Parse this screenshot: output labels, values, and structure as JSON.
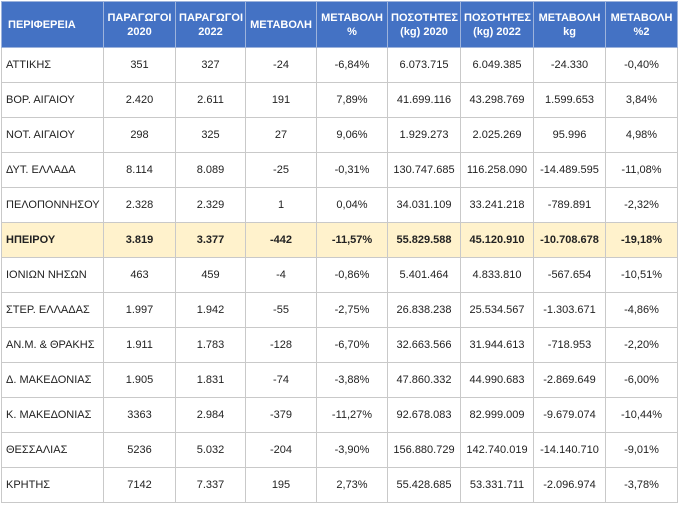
{
  "table": {
    "header": [
      "ΠΕΡΙΦΕΡΕΙΑ",
      "ΠΑΡΑΓΩΓΟΙ 2020",
      "ΠΑΡΑΓΩΓΟΙ 2022",
      "ΜΕΤΑΒΟΛΗ",
      "ΜΕΤΑΒΟΛΗ %",
      "ΠΟΣΟΤΗΤΕΣ (kg) 2020",
      "ΠΟΣΟΤΗΤΕΣ (kg) 2022",
      "ΜΕΤΑΒΟΛΗ kg",
      "ΜΕΤΑΒΟΛΗ %2"
    ],
    "rows": [
      [
        "ΑΤΤΙΚΗΣ",
        "351",
        "327",
        "-24",
        "-6,84%",
        "6.073.715",
        "6.049.385",
        "-24.330",
        "-0,40%"
      ],
      [
        "ΒΟΡ. ΑΙΓΑΙΟΥ",
        "2.420",
        "2.611",
        "191",
        "7,89%",
        "41.699.116",
        "43.298.769",
        "1.599.653",
        "3,84%"
      ],
      [
        "ΝΟΤ. ΑΙΓΑΙΟΥ",
        "298",
        "325",
        "27",
        "9,06%",
        "1.929.273",
        "2.025.269",
        "95.996",
        "4,98%"
      ],
      [
        "ΔΥΤ. ΕΛΛΑΔΑ",
        "8.114",
        "8.089",
        "-25",
        "-0,31%",
        "130.747.685",
        "116.258.090",
        "-14.489.595",
        "-11,08%"
      ],
      [
        "ΠΕΛΟΠΟΝΝΗΣΟΥ",
        "2.328",
        "2.329",
        "1",
        "0,04%",
        "34.031.109",
        "33.241.218",
        "-789.891",
        "-2,32%"
      ],
      [
        "ΗΠΕΙΡΟΥ",
        "3.819",
        "3.377",
        "-442",
        "-11,57%",
        "55.829.588",
        "45.120.910",
        "-10.708.678",
        "-19,18%"
      ],
      [
        "ΙΟΝΙΩΝ ΝΗΣΩΝ",
        "463",
        "459",
        "-4",
        "-0,86%",
        "5.401.464",
        "4.833.810",
        "-567.654",
        "-10,51%"
      ],
      [
        "ΣΤΕΡ. ΕΛΛΑΔΑΣ",
        "1.997",
        "1.942",
        "-55",
        "-2,75%",
        "26.838.238",
        "25.534.567",
        "-1.303.671",
        "-4,86%"
      ],
      [
        "ΑΝ.Μ. & ΘΡΑΚΗΣ",
        "1.911",
        "1.783",
        "-128",
        "-6,70%",
        "32.663.566",
        "31.944.613",
        "-718.953",
        "-2,20%"
      ],
      [
        "Δ. ΜΑΚΕΔΟΝΙΑΣ",
        "1.905",
        "1.831",
        "-74",
        "-3,88%",
        "47.860.332",
        "44.990.683",
        "-2.869.649",
        "-6,00%"
      ],
      [
        "Κ. ΜΑΚΕΔΟΝΙΑΣ",
        "3363",
        "2.984",
        "-379",
        "-11,27%",
        "92.678.083",
        "82.999.009",
        "-9.679.074",
        "-10,44%"
      ],
      [
        "ΘΕΣΣΑΛΙΑΣ",
        "5236",
        "5.032",
        "-204",
        "-3,90%",
        "156.880.729",
        "142.740.019",
        "-14.140.710",
        "-9,01%"
      ],
      [
        "ΚΡΗΤΗΣ",
        "7142",
        "7.337",
        "195",
        "2,73%",
        "55.428.685",
        "53.331.711",
        "-2.096.974",
        "-3,78%"
      ]
    ]
  }
}
